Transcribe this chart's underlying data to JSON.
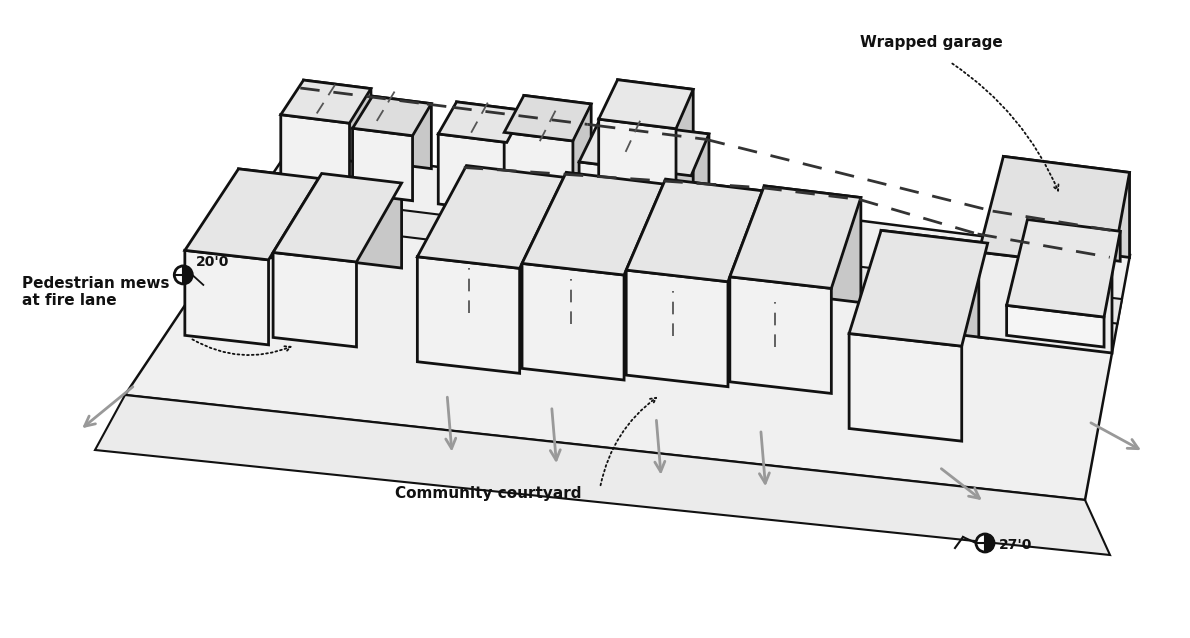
{
  "bg_color": "#ffffff",
  "face_color": "#f2f2f2",
  "side_color": "#c8c8c8",
  "top_color": "#e6e6e6",
  "dark_face": "#e0e0e0",
  "outline_color": "#111111",
  "arrow_color": "#999999",
  "label_wrapped_garage": "Wrapped garage",
  "label_pedestrian": "Pedestrian mews\nat fire lane",
  "label_courtyard": "Community courtyard",
  "label_20": "20'0",
  "label_27": "27'0",
  "text_color": "#111111"
}
